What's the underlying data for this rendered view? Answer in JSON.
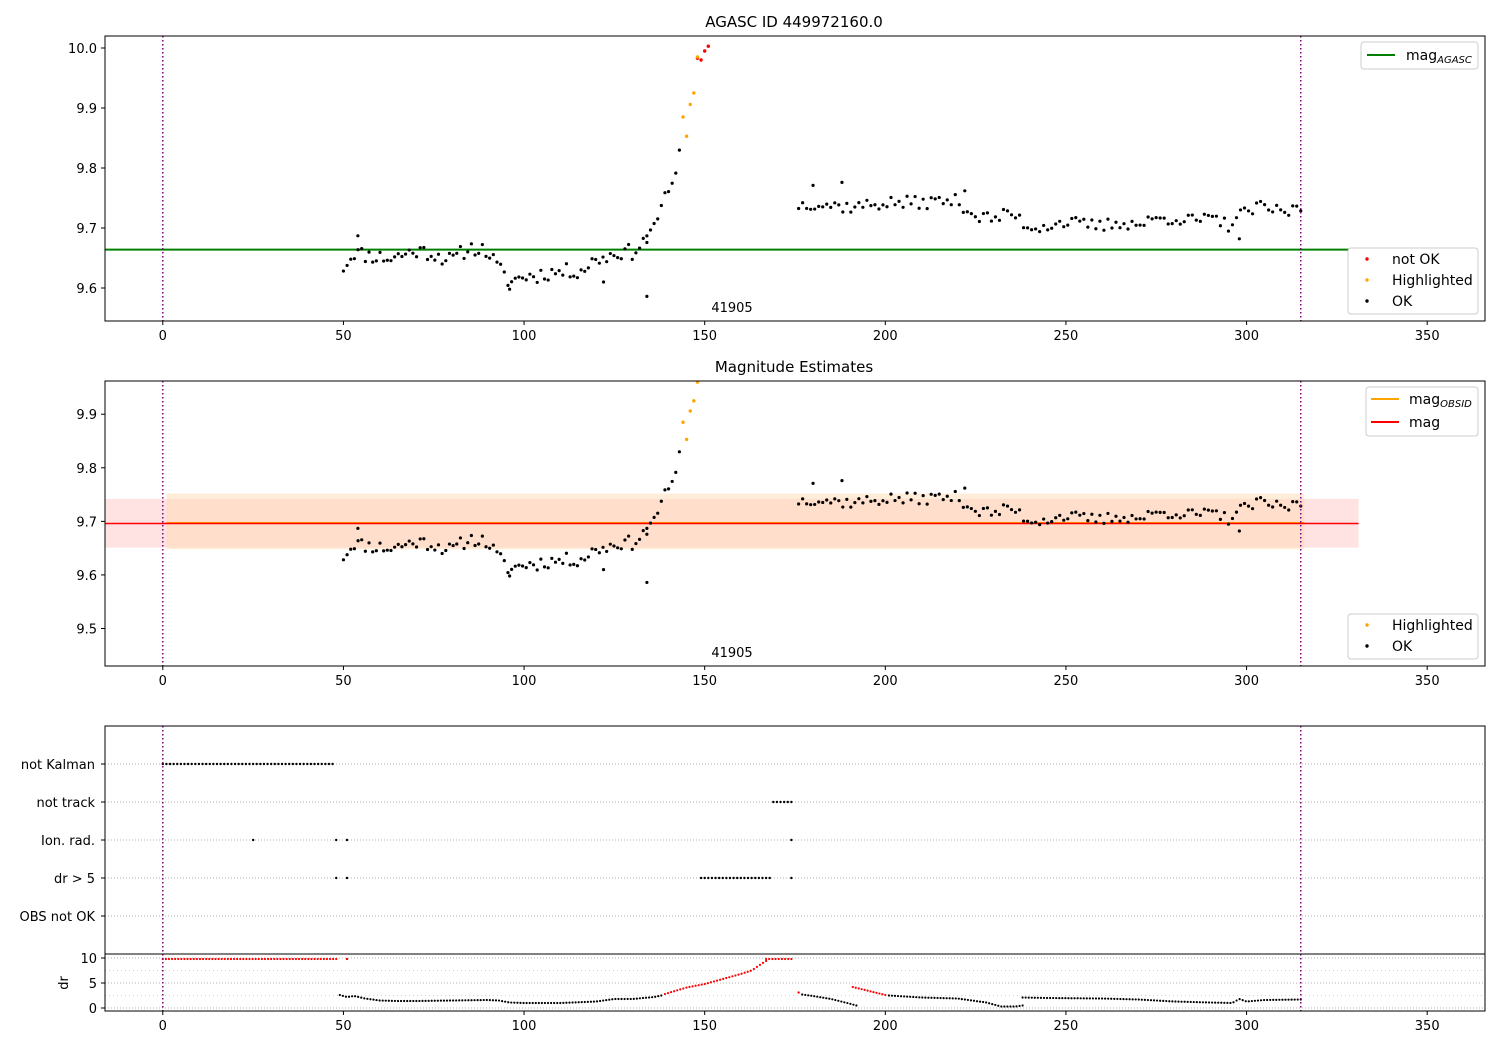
{
  "chart_data": [
    {
      "type": "scatter",
      "title": "AGASC ID 449972160.0",
      "xlim": [
        -16,
        366
      ],
      "ylim": [
        9.545,
        10.02
      ],
      "x_ticks": [
        0,
        50,
        100,
        150,
        200,
        250,
        300,
        350
      ],
      "y_ticks": [
        9.6,
        9.7,
        9.8,
        9.9,
        10.0
      ],
      "y_tick_labels": [
        "9.6",
        "9.7",
        "9.8",
        "9.9",
        "10.0"
      ],
      "obsid_annotation": {
        "text": "41905",
        "x": 150
      },
      "vlines": [
        0,
        315
      ],
      "hline": {
        "name": "mag_AGASC",
        "value": 9.664,
        "x_range": [
          -16,
          331
        ],
        "color": "#008000"
      },
      "legend_line_label": "mag",
      "legend_line_sub": "AGASC",
      "legend_points": [
        {
          "label": "not OK",
          "color": "#ff0000"
        },
        {
          "label": "Highlighted",
          "color": "#ffa500"
        },
        {
          "label": "OK",
          "color": "#000000"
        }
      ],
      "series": [
        {
          "name": "not OK",
          "color": "#ff0000",
          "points": [
            [
              148,
              9.983
            ],
            [
              149,
              9.98
            ],
            [
              150,
              9.995
            ],
            [
              151,
              10.003
            ]
          ]
        },
        {
          "name": "Highlighted",
          "color": "#ffa500",
          "points": [
            [
              144,
              9.885
            ],
            [
              145,
              9.853
            ],
            [
              146,
              9.906
            ],
            [
              147,
              9.925
            ],
            [
              148,
              9.985
            ]
          ]
        }
      ],
      "ok_segments": [
        {
          "x": [
            50,
            53,
            56,
            60,
            63,
            66,
            70,
            73,
            76,
            80,
            83,
            86,
            90,
            93,
            96,
            100,
            103,
            106,
            110,
            113,
            116,
            120,
            123,
            126,
            130,
            134
          ],
          "y": [
            9.635,
            9.66,
            9.655,
            9.652,
            9.649,
            9.655,
            9.662,
            9.66,
            9.655,
            9.645,
            9.66,
            9.668,
            9.66,
            9.632,
            9.61,
            9.62,
            9.62,
            9.625,
            9.627,
            9.628,
            9.63,
            9.648,
            9.652,
            9.66,
            9.66,
            9.68
          ],
          "n": 84,
          "seed": 11,
          "noise": 0.013
        },
        {
          "x": [
            134,
            137,
            139,
            141,
            142,
            143
          ],
          "y": [
            9.69,
            9.715,
            9.755,
            9.772,
            9.795,
            9.825
          ],
          "n": 10,
          "seed": 23,
          "noise": 0.006
        },
        {
          "x": [
            176,
            180,
            185,
            190,
            195,
            200,
            205,
            210,
            215,
            220,
            225,
            230,
            235,
            240,
            245,
            250,
            255,
            260,
            265,
            270,
            275,
            280,
            285,
            290,
            295,
            300,
            305,
            310,
            315
          ],
          "y": [
            9.738,
            9.742,
            9.738,
            9.735,
            9.738,
            9.742,
            9.742,
            9.742,
            9.745,
            9.745,
            9.72,
            9.715,
            9.725,
            9.7,
            9.705,
            9.71,
            9.705,
            9.703,
            9.71,
            9.705,
            9.715,
            9.717,
            9.712,
            9.715,
            9.705,
            9.728,
            9.735,
            9.725,
            9.735
          ],
          "n": 126,
          "seed": 37,
          "noise": 0.011
        }
      ],
      "ok_outliers": [
        [
          54,
          9.687
        ],
        [
          134,
          9.586
        ],
        [
          122,
          9.61
        ],
        [
          96,
          9.598
        ],
        [
          188,
          9.776
        ],
        [
          180,
          9.771
        ],
        [
          222,
          9.762
        ],
        [
          298,
          9.682
        ]
      ]
    },
    {
      "type": "scatter",
      "title": "Magnitude Estimates",
      "xlim": [
        -16,
        366
      ],
      "ylim": [
        9.43,
        9.962
      ],
      "x_ticks": [
        0,
        50,
        100,
        150,
        200,
        250,
        300,
        350
      ],
      "y_ticks": [
        9.5,
        9.6,
        9.7,
        9.8,
        9.9
      ],
      "y_tick_labels": [
        "9.5",
        "9.6",
        "9.7",
        "9.8",
        "9.9"
      ],
      "obsid_annotation": {
        "text": "41905",
        "x": 150
      },
      "vlines": [
        0,
        315
      ],
      "hline": {
        "name": "mag",
        "value": 9.696,
        "x_range": [
          -16,
          331
        ],
        "color": "#ff0000"
      },
      "band_mag": {
        "y_range": [
          9.651,
          9.742
        ],
        "x_range": [
          -16,
          331
        ],
        "color": "#ffc0c0"
      },
      "band_obsid": {
        "y_range": [
          9.648,
          9.752
        ],
        "x_range": [
          1,
          316
        ],
        "color": "#ffdcb4"
      },
      "obsid_line": {
        "value": 9.697,
        "x_range": [
          1,
          316
        ],
        "color": "#ffa500"
      },
      "legend_lines": [
        {
          "label": "mag",
          "sub": "OBSID",
          "color": "#ffa500"
        },
        {
          "label": "mag",
          "sub": "",
          "color": "#ff0000"
        }
      ],
      "legend_points": [
        {
          "label": "Highlighted",
          "color": "#ffa500"
        },
        {
          "label": "OK",
          "color": "#000000"
        }
      ],
      "series": [
        {
          "name": "Highlighted",
          "color": "#ffa500",
          "points": [
            [
              144,
              9.885
            ],
            [
              145,
              9.853
            ],
            [
              146,
              9.906
            ],
            [
              147,
              9.925
            ],
            [
              148,
              9.96
            ]
          ]
        }
      ],
      "ok_segments": "same-as-panel-1",
      "ok_outliers": "same-as-panel-1"
    },
    {
      "type": "scatter",
      "title": "",
      "xlim": [
        -16,
        366
      ],
      "x_ticks": [
        0,
        50,
        100,
        150,
        200,
        250,
        300,
        350
      ],
      "vlines": [
        0,
        315
      ],
      "flag_rows": [
        {
          "label": "not Kalman",
          "ranges": [
            [
              0,
              47
            ]
          ],
          "points": []
        },
        {
          "label": "not track",
          "ranges": [
            [
              169,
              174
            ]
          ],
          "points": []
        },
        {
          "label": "Ion. rad.",
          "ranges": [],
          "points": [
            25,
            48,
            51,
            174
          ]
        },
        {
          "label": "dr > 5",
          "ranges": [
            [
              149,
              168
            ]
          ],
          "points": [
            48,
            51,
            174
          ]
        },
        {
          "label": "OBS not OK",
          "ranges": [],
          "points": []
        }
      ]
    },
    {
      "type": "scatter",
      "title": "",
      "ylabel": "dr",
      "xlim": [
        -16,
        366
      ],
      "ylim": [
        -0.6,
        10.8
      ],
      "x_ticks": [
        0,
        50,
        100,
        150,
        200,
        250,
        300,
        350
      ],
      "x_tick_labels": [
        "0",
        "50",
        "100",
        "150",
        "200",
        "250",
        "300",
        "350"
      ],
      "y_ticks": [
        0,
        5,
        10
      ],
      "y_tick_labels": [
        "0",
        "5",
        "10"
      ],
      "vlines": [
        0,
        315
      ],
      "red_segments": [
        {
          "x": [
            0,
            48
          ],
          "y": [
            9.8,
            9.8
          ]
        },
        {
          "x": [
            51,
            51
          ],
          "y": [
            9.8,
            9.8
          ]
        },
        {
          "x": [
            139,
            145,
            150,
            155,
            160,
            163,
            165,
            167
          ],
          "y": [
            2.8,
            4.1,
            4.8,
            5.8,
            6.8,
            7.5,
            8.5,
            9.4
          ]
        },
        {
          "x": [
            167,
            174
          ],
          "y": [
            9.8,
            9.8
          ]
        },
        {
          "x": [
            176,
            176
          ],
          "y": [
            3.1,
            3.1
          ]
        },
        {
          "x": [
            191,
            200
          ],
          "y": [
            4.2,
            2.6
          ]
        }
      ],
      "black_segments": [
        {
          "x": [
            49,
            51,
            53,
            56,
            60,
            65,
            70,
            80,
            90,
            93,
            96,
            100,
            110,
            120,
            125,
            130,
            136,
            138
          ],
          "y": [
            2.6,
            2.2,
            2.4,
            1.9,
            1.5,
            1.4,
            1.4,
            1.5,
            1.6,
            1.5,
            1.1,
            1.0,
            1.0,
            1.3,
            1.8,
            1.8,
            2.2,
            2.5
          ]
        },
        {
          "x": [
            177,
            180,
            185,
            190,
            192
          ],
          "y": [
            2.7,
            2.4,
            1.8,
            0.9,
            0.5
          ]
        },
        {
          "x": [
            201,
            210,
            220,
            228,
            232,
            236,
            238
          ],
          "y": [
            2.5,
            2.1,
            1.9,
            1.1,
            0.3,
            0.3,
            0.5
          ]
        },
        {
          "x": [
            238,
            245,
            260,
            270,
            280,
            290,
            296,
            298,
            300,
            305,
            315
          ],
          "y": [
            2.1,
            2.0,
            1.9,
            1.7,
            1.3,
            1.1,
            1.0,
            1.8,
            1.3,
            1.6,
            1.7
          ]
        }
      ]
    }
  ]
}
